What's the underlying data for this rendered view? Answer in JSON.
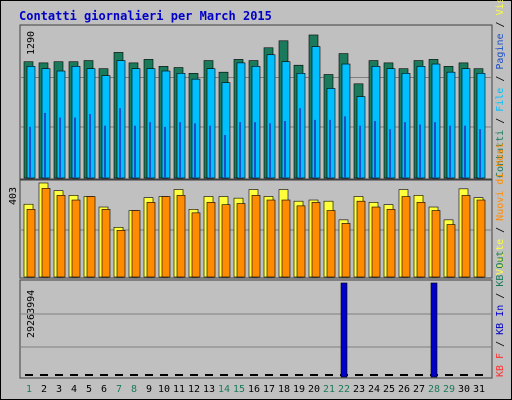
{
  "chart_data": [
    {
      "type": "bar",
      "title": "Contatti giornalieri per March 2015",
      "categories": [
        "1",
        "2",
        "3",
        "4",
        "5",
        "6",
        "7",
        "8",
        "9",
        "10",
        "11",
        "12",
        "13",
        "14",
        "15",
        "16",
        "17",
        "18",
        "19",
        "20",
        "21",
        "22",
        "23",
        "24",
        "25",
        "26",
        "27",
        "28",
        "29",
        "30",
        "31"
      ],
      "weekend_days": [
        "1",
        "7",
        "8",
        "14",
        "15",
        "21",
        "22",
        "28",
        "29"
      ],
      "ytick": "1290",
      "ylim": [
        0,
        1290
      ],
      "legend_labels": [
        "Contatti",
        " / ",
        "File",
        " / ",
        "Pagine",
        " / ",
        "Visite"
      ],
      "series": [
        {
          "name": "Contatti",
          "color": "#1b7a5b",
          "values": [
            1000,
            990,
            1000,
            1000,
            1010,
            940,
            1080,
            990,
            1020,
            960,
            950,
            900,
            1010,
            910,
            1020,
            1010,
            1120,
            1180,
            970,
            1230,
            890,
            1070,
            810,
            1010,
            990,
            940,
            1010,
            1020,
            960,
            990,
            940
          ]
        },
        {
          "name": "File",
          "color": "#00bfff",
          "values": [
            960,
            940,
            920,
            960,
            940,
            880,
            1010,
            940,
            940,
            920,
            900,
            850,
            940,
            820,
            990,
            960,
            1060,
            1000,
            900,
            1130,
            770,
            980,
            700,
            960,
            940,
            900,
            960,
            980,
            910,
            940,
            900
          ]
        },
        {
          "name": "Pagine",
          "color": "#1e50c8",
          "values": [
            440,
            560,
            520,
            520,
            550,
            450,
            600,
            450,
            480,
            440,
            480,
            470,
            450,
            370,
            480,
            480,
            470,
            490,
            600,
            500,
            500,
            530,
            450,
            490,
            420,
            480,
            460,
            480,
            450,
            450,
            420
          ]
        },
        {
          "name": "Visite",
          "color": "#3c3c3c",
          "values": [
            0,
            0,
            0,
            0,
            0,
            0,
            0,
            0,
            0,
            0,
            0,
            0,
            0,
            0,
            0,
            0,
            0,
            0,
            0,
            0,
            0,
            0,
            0,
            0,
            0,
            0,
            0,
            0,
            0,
            0,
            0
          ]
        }
      ]
    },
    {
      "type": "bar",
      "categories": [
        "1",
        "2",
        "3",
        "4",
        "5",
        "6",
        "7",
        "8",
        "9",
        "10",
        "11",
        "12",
        "13",
        "14",
        "15",
        "16",
        "17",
        "18",
        "19",
        "20",
        "21",
        "22",
        "23",
        "24",
        "25",
        "26",
        "27",
        "28",
        "29",
        "30",
        "31"
      ],
      "ytick": "403",
      "ylim": [
        0,
        403
      ],
      "legend_labels": [
        "Visite",
        " / ",
        "Nuovi di Host"
      ],
      "series": [
        {
          "name": "Visite",
          "color": "#ffff3c",
          "values": [
            312,
            403,
            370,
            350,
            345,
            300,
            213,
            285,
            340,
            345,
            375,
            290,
            345,
            345,
            338,
            375,
            345,
            375,
            325,
            330,
            325,
            245,
            345,
            320,
            310,
            375,
            350,
            300,
            245,
            378,
            340
          ]
        },
        {
          "name": "Nuovi di Host",
          "color": "#ff8c00",
          "values": [
            290,
            380,
            350,
            330,
            345,
            290,
            200,
            285,
            320,
            345,
            350,
            275,
            320,
            310,
            315,
            350,
            330,
            330,
            305,
            320,
            285,
            230,
            325,
            300,
            290,
            345,
            320,
            285,
            225,
            350,
            330
          ]
        }
      ]
    },
    {
      "type": "bar",
      "categories": [
        "1",
        "2",
        "3",
        "4",
        "5",
        "6",
        "7",
        "8",
        "9",
        "10",
        "11",
        "12",
        "13",
        "14",
        "15",
        "16",
        "17",
        "18",
        "19",
        "20",
        "21",
        "22",
        "23",
        "24",
        "25",
        "26",
        "27",
        "28",
        "29",
        "30",
        "31"
      ],
      "ytick": "29263994",
      "ylim": [
        0,
        29263994
      ],
      "legend_labels": [
        "KB F",
        " / ",
        "KB In",
        " / ",
        "KB Out"
      ],
      "series": [
        {
          "name": "KB F",
          "color": "#ff3030",
          "values": [
            0,
            0,
            0,
            0,
            0,
            0,
            0,
            0,
            0,
            0,
            0,
            0,
            0,
            0,
            0,
            0,
            0,
            0,
            0,
            0,
            0,
            0,
            0,
            0,
            0,
            0,
            0,
            0,
            0,
            0,
            0
          ]
        },
        {
          "name": "KB In",
          "color": "#0000c8",
          "values": [
            0,
            0,
            0,
            0,
            0,
            0,
            0,
            0,
            0,
            0,
            0,
            0,
            0,
            0,
            0,
            0,
            0,
            0,
            0,
            0,
            0,
            29263994,
            0,
            0,
            0,
            0,
            0,
            29263994,
            0,
            0,
            0
          ]
        },
        {
          "name": "KB Out",
          "color": "#1b7a5b",
          "values": [
            0,
            0,
            0,
            0,
            0,
            0,
            0,
            0,
            0,
            0,
            0,
            0,
            0,
            0,
            0,
            0,
            0,
            0,
            0,
            0,
            0,
            0,
            0,
            0,
            0,
            0,
            0,
            0,
            0,
            0,
            0
          ]
        }
      ]
    }
  ],
  "colors": {
    "background": "#c0c0c0",
    "frame": "#000000",
    "title": "#0000c8",
    "grid": "#808080",
    "weekend_label": "#1b7a5b",
    "weekday_label": "#000000",
    "separator": "#404040"
  }
}
